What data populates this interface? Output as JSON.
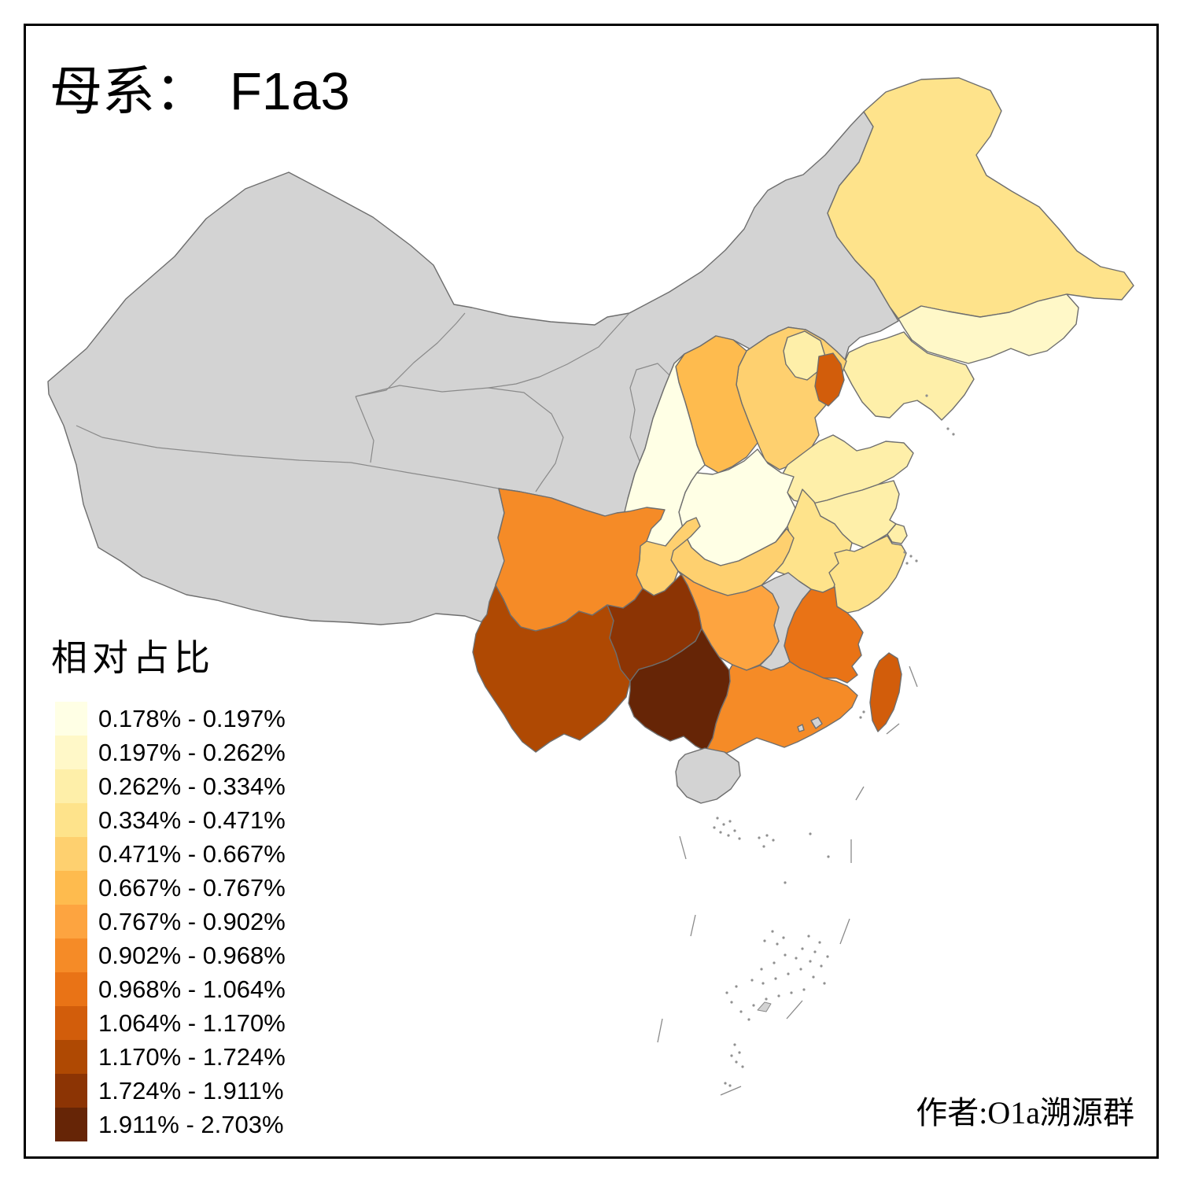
{
  "title": {
    "prefix": "母系：",
    "haplogroup": "F1a3"
  },
  "legend": {
    "title": "相对占比",
    "classes": [
      {
        "label": "0.178% - 0.197%",
        "color": "#FFFFE5"
      },
      {
        "label": "0.197% - 0.262%",
        "color": "#FFF8C8"
      },
      {
        "label": "0.262% - 0.334%",
        "color": "#FEEFA9"
      },
      {
        "label": "0.334% - 0.471%",
        "color": "#FEE38B"
      },
      {
        "label": "0.471% - 0.667%",
        "color": "#FED06F"
      },
      {
        "label": "0.667% - 0.767%",
        "color": "#FEBB4E"
      },
      {
        "label": "0.767% - 0.902%",
        "color": "#FDA440"
      },
      {
        "label": "0.902% - 0.968%",
        "color": "#F58B27"
      },
      {
        "label": "0.968% - 1.064%",
        "color": "#E97316"
      },
      {
        "label": "1.064% - 1.170%",
        "color": "#D25D0B"
      },
      {
        "label": "1.170% - 1.724%",
        "color": "#AF4903"
      },
      {
        "label": "1.724% - 1.911%",
        "color": "#8C3404"
      },
      {
        "label": "1.911% - 2.703%",
        "color": "#662506"
      }
    ]
  },
  "attribution": "作者:O1a溯源群",
  "map": {
    "no_data_color": "#D3D3D3",
    "border_color": "#6E6E6E",
    "sea_color": "#FFFFFF",
    "provinces": [
      {
        "id": "heilongjiang",
        "bin": 4
      },
      {
        "id": "jilin",
        "bin": 2
      },
      {
        "id": "liaoning",
        "bin": 3
      },
      {
        "id": "hebei",
        "bin": 5
      },
      {
        "id": "beijing",
        "bin": 3
      },
      {
        "id": "tianjin",
        "bin": 10
      },
      {
        "id": "shanxi",
        "bin": 6
      },
      {
        "id": "shandong",
        "bin": 3
      },
      {
        "id": "henan",
        "bin": 1
      },
      {
        "id": "shaanxi",
        "bin": 1
      },
      {
        "id": "jiangsu",
        "bin": 3
      },
      {
        "id": "anhui",
        "bin": 4
      },
      {
        "id": "shanghai",
        "bin": 3
      },
      {
        "id": "zhejiang",
        "bin": 4
      },
      {
        "id": "hubei",
        "bin": 5
      },
      {
        "id": "chongqing",
        "bin": 5
      },
      {
        "id": "sichuan",
        "bin": 8
      },
      {
        "id": "jiangxi",
        "bin": null
      },
      {
        "id": "hunan",
        "bin": 7
      },
      {
        "id": "fujian",
        "bin": 9
      },
      {
        "id": "guangdong",
        "bin": 8
      },
      {
        "id": "yunnan",
        "bin": 11
      },
      {
        "id": "guizhou",
        "bin": 12
      },
      {
        "id": "guangxi",
        "bin": 13
      },
      {
        "id": "taiwan",
        "bin": 10
      },
      {
        "id": "hainan",
        "bin": null
      },
      {
        "id": "hongkong",
        "bin": null
      },
      {
        "id": "macau",
        "bin": null
      }
    ]
  },
  "chart_data": {
    "type": "heatmap",
    "subtype": "choropleth-map",
    "region": "China provinces",
    "title": "母系： F1a3",
    "legend_title": "相对占比",
    "legend_position": "bottom-left",
    "bins": [
      "0.178% - 0.197%",
      "0.197% - 0.262%",
      "0.262% - 0.334%",
      "0.334% - 0.471%",
      "0.471% - 0.667%",
      "0.667% - 0.767%",
      "0.767% - 0.902%",
      "0.902% - 0.968%",
      "0.968% - 1.064%",
      "1.064% - 1.170%",
      "1.170% - 1.724%",
      "1.724% - 1.911%",
      "1.911% - 2.703%"
    ],
    "values": {
      "Heilongjiang": "0.334% - 0.471%",
      "Jilin": "0.197% - 0.262%",
      "Liaoning": "0.262% - 0.334%",
      "Beijing": "0.262% - 0.334%",
      "Tianjin": "1.064% - 1.170%",
      "Hebei": "0.471% - 0.667%",
      "Shanxi": "0.667% - 0.767%",
      "Shandong": "0.262% - 0.334%",
      "Henan": "0.178% - 0.197%",
      "Shaanxi": "0.178% - 0.197%",
      "Jiangsu": "0.262% - 0.334%",
      "Anhui": "0.334% - 0.471%",
      "Shanghai": "0.262% - 0.334%",
      "Zhejiang": "0.334% - 0.471%",
      "Hubei": "0.471% - 0.667%",
      "Chongqing": "0.471% - 0.667%",
      "Sichuan": "0.902% - 0.968%",
      "Hunan": "0.767% - 0.902%",
      "Fujian": "0.968% - 1.064%",
      "Guangdong": "0.902% - 0.968%",
      "Guangxi": "1.911% - 2.703%",
      "Guizhou": "1.724% - 1.911%",
      "Yunnan": "1.170% - 1.724%",
      "Taiwan": "1.064% - 1.170%",
      "Jiangxi": null,
      "Hainan": null,
      "Xinjiang": null,
      "Tibet": null,
      "Qinghai": null,
      "Gansu": null,
      "Ningxia": null,
      "Inner Mongolia": null,
      "Hong Kong": null,
      "Macau": null
    }
  }
}
